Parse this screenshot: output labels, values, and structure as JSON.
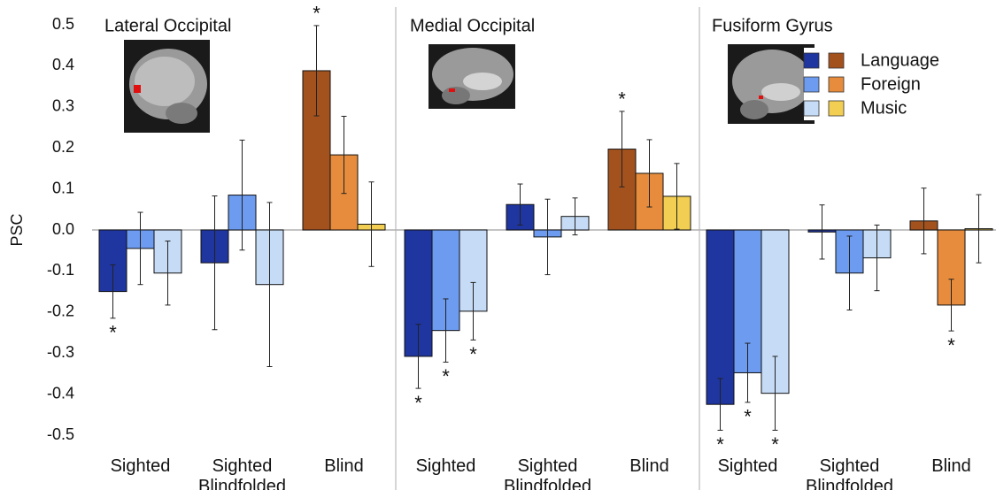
{
  "chart_data": [
    {
      "type": "bar",
      "title": "Lateral Occipital",
      "ylabel": "PSC",
      "ylim": [
        -0.5,
        0.5
      ],
      "yticks": [
        0.5,
        0.4,
        0.3,
        0.2,
        0.1,
        {
          "value": 0,
          "label": "0.0"
        },
        -0.1,
        -0.2,
        -0.3,
        -0.4,
        -0.5
      ],
      "categories": [
        "Sighted",
        "Sighted Blindfolded",
        "Blind"
      ],
      "series": [
        {
          "name": "Language",
          "colors": [
            "#1f35a0",
            "#a3521e"
          ],
          "values": [
            -0.15,
            -0.08,
            0.388
          ],
          "errors": [
            0.065,
            0.163,
            0.11
          ],
          "annotations": [
            "*",
            null,
            "*"
          ]
        },
        {
          "name": "Foreign",
          "colors": [
            "#6c9bf0",
            "#e68c3c"
          ],
          "values": [
            -0.045,
            0.085,
            0.183
          ],
          "errors": [
            0.088,
            0.134,
            0.094
          ],
          "annotations": [
            null,
            null,
            null
          ]
        },
        {
          "name": "Music",
          "colors": [
            "#c6dcf6",
            "#f2cf52"
          ],
          "values": [
            -0.105,
            -0.133,
            0.014
          ],
          "errors": [
            0.078,
            0.2,
            0.103
          ],
          "annotations": [
            null,
            null,
            null
          ]
        }
      ]
    },
    {
      "type": "bar",
      "title": "Medial Occipital",
      "categories": [
        "Sighted",
        "Sighted Blindfolded",
        "Blind"
      ],
      "series": [
        {
          "name": "Language",
          "colors": [
            "#1f35a0",
            "#a3521e"
          ],
          "values": [
            -0.308,
            0.062,
            0.197
          ],
          "errors": [
            0.078,
            0.05,
            0.092
          ],
          "annotations": [
            "*",
            null,
            "*"
          ]
        },
        {
          "name": "Foreign",
          "colors": [
            "#6c9bf0",
            "#e68c3c"
          ],
          "values": [
            -0.245,
            -0.017,
            0.138
          ],
          "errors": [
            0.077,
            0.092,
            0.082
          ],
          "annotations": [
            "*",
            null,
            null
          ]
        },
        {
          "name": "Music",
          "colors": [
            "#c6dcf6",
            "#f2cf52"
          ],
          "values": [
            -0.198,
            0.033,
            0.082
          ],
          "errors": [
            0.07,
            0.045,
            0.08
          ],
          "annotations": [
            "*",
            null,
            null
          ]
        }
      ]
    },
    {
      "type": "bar",
      "title": "Fusiform Gyrus",
      "legend": "top-right",
      "categories": [
        "Sighted",
        "Sighted Blindfolded",
        "Blind"
      ],
      "series": [
        {
          "name": "Language",
          "colors": [
            "#1f35a0",
            "#a3521e"
          ],
          "values": [
            -0.425,
            -0.005,
            0.022
          ],
          "errors": [
            0.063,
            0.066,
            0.08
          ],
          "annotations": [
            "*",
            null,
            null
          ]
        },
        {
          "name": "Foreign",
          "colors": [
            "#6c9bf0",
            "#e68c3c"
          ],
          "values": [
            -0.348,
            -0.105,
            -0.183
          ],
          "errors": [
            0.072,
            0.09,
            0.063
          ],
          "annotations": [
            "*",
            null,
            "*"
          ]
        },
        {
          "name": "Music",
          "colors": [
            "#c6dcf6",
            "#f2cf52"
          ],
          "values": [
            -0.398,
            -0.068,
            0.003
          ],
          "errors": [
            0.09,
            0.08,
            0.083
          ],
          "annotations": [
            "*",
            null,
            null
          ]
        }
      ]
    }
  ]
}
